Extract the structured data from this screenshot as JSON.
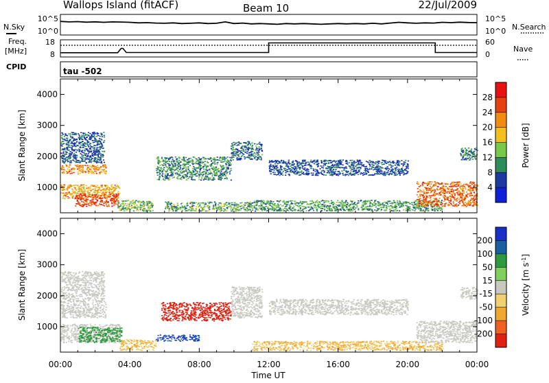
{
  "header": {
    "title": "Wallops Island (fitACF)",
    "beam": "Beam 10",
    "date": "22/Jul/2009"
  },
  "noise_panel": {
    "left_label": "N.Sky",
    "left_ticks": [
      "10^5",
      "10^0"
    ],
    "right_label": "N.Search",
    "right_ticks": [
      "10^5",
      "10^0"
    ]
  },
  "freq_panel": {
    "left_label_1": "Freq.",
    "left_label_2": "[MHz]",
    "left_ticks": [
      "18",
      "8"
    ],
    "right_label": "Nave",
    "right_ticks": [
      "60",
      "0"
    ],
    "cpid_label": "CPID"
  },
  "cpid_panel": {
    "text": "tau -502"
  },
  "x_axis": {
    "ticks": [
      "00:00",
      "04:00",
      "08:00",
      "12:00",
      "16:00",
      "20:00",
      "00:00"
    ],
    "label": "Time UT"
  },
  "colors": {
    "power": [
      "#1020d8",
      "#1c3aa0",
      "#2e8c5a",
      "#7ac84a",
      "#f4c020",
      "#f08c10",
      "#e84010",
      "#e81010"
    ],
    "velocity": [
      "#1830c8",
      "#1a60a0",
      "#2f9a40",
      "#80d060",
      "#c8c8c0",
      "#f0d070",
      "#f0a830",
      "#f06020",
      "#e02010"
    ]
  },
  "chart_data": [
    {
      "type": "line",
      "name": "noise",
      "x_unit": "hours UT",
      "xlim": [
        0,
        24
      ],
      "y_scale": "log",
      "ylim": [
        1,
        100000
      ],
      "series": [
        {
          "name": "N.Sky",
          "x": [
            0,
            0.5,
            1,
            1.5,
            2,
            2.5,
            3,
            3.5,
            4,
            4.5,
            5,
            5.5,
            6,
            6.5,
            7,
            7.5,
            8,
            8.5,
            9,
            9.5,
            10,
            10.5,
            11,
            11.5,
            12,
            12.5,
            13,
            13.5,
            14,
            14.5,
            15,
            15.5,
            16,
            16.5,
            17,
            17.5,
            18,
            18.5,
            19,
            19.5,
            20,
            20.5,
            21,
            21.5,
            22,
            22.5,
            23,
            23.5,
            24
          ],
          "y": [
            2000,
            1500,
            1800,
            1300,
            1600,
            1200,
            1500,
            1400,
            1200,
            900,
            1000,
            800,
            700,
            900,
            600,
            700,
            900,
            600,
            700,
            1500,
            600,
            800,
            500,
            600,
            500,
            400,
            600,
            500,
            600,
            500,
            400,
            500,
            600,
            500,
            600,
            500,
            700,
            500,
            800,
            1200,
            900,
            700,
            900,
            800,
            1200,
            1000,
            1300,
            1100,
            1000
          ]
        }
      ]
    },
    {
      "type": "line",
      "name": "frequency",
      "x_unit": "hours UT",
      "xlim": [
        0,
        24
      ],
      "ylim": [
        8,
        18
      ],
      "series": [
        {
          "name": "Freq.",
          "x": [
            0,
            3.3,
            3.5,
            3.6,
            3.8,
            12.0,
            12.0,
            21.6,
            21.6,
            24
          ],
          "y": [
            10.5,
            10.5,
            13.0,
            13.0,
            10.6,
            10.6,
            16.2,
            16.2,
            10.6,
            10.6
          ]
        }
      ]
    },
    {
      "type": "heatmap",
      "name": "power",
      "x_unit": "hours UT",
      "xlim": [
        0,
        24
      ],
      "ylabel": "Slant Range [km]",
      "ylim": [
        180,
        4500
      ],
      "yticks": [
        1000,
        2000,
        3000,
        4000
      ],
      "colorbar": {
        "label": "Power [dB]",
        "ticks": [
          4,
          8,
          12,
          16,
          20,
          24,
          28
        ],
        "range": [
          0,
          32
        ]
      },
      "regions": [
        {
          "t": [
            0.0,
            2.6
          ],
          "r": [
            1450,
            1750
          ],
          "v": 22
        },
        {
          "t": [
            0.0,
            3.4
          ],
          "r": [
            650,
            1100
          ],
          "v": 20
        },
        {
          "t": [
            0.8,
            3.3
          ],
          "r": [
            400,
            800
          ],
          "v": 27
        },
        {
          "t": [
            0.0,
            2.5
          ],
          "r": [
            1800,
            2800
          ],
          "v": 7
        },
        {
          "t": [
            3.2,
            5.3
          ],
          "r": [
            250,
            600
          ],
          "v": 13
        },
        {
          "t": [
            6.0,
            11.0
          ],
          "r": [
            250,
            550
          ],
          "v": 12
        },
        {
          "t": [
            5.5,
            9.8
          ],
          "r": [
            1250,
            2000
          ],
          "v": 10
        },
        {
          "t": [
            9.8,
            11.6
          ],
          "r": [
            1900,
            2500
          ],
          "v": 8
        },
        {
          "t": [
            11.0,
            22.0
          ],
          "r": [
            250,
            600
          ],
          "v": 11
        },
        {
          "t": [
            12.0,
            20.0
          ],
          "r": [
            1400,
            1900
          ],
          "v": 6
        },
        {
          "t": [
            20.5,
            24.0
          ],
          "r": [
            400,
            1200
          ],
          "v": 24
        },
        {
          "t": [
            23.0,
            24.0
          ],
          "r": [
            1900,
            2300
          ],
          "v": 9
        }
      ]
    },
    {
      "type": "heatmap",
      "name": "velocity",
      "x_unit": "hours UT",
      "xlim": [
        0,
        24
      ],
      "ylabel": "Slant Range [km]",
      "ylim": [
        180,
        4500
      ],
      "yticks": [
        1000,
        2000,
        3000,
        4000
      ],
      "colorbar": {
        "label": "Velocity [m s^-1]",
        "ticks": [
          200,
          100,
          50,
          15,
          -15,
          -50,
          -100,
          -200
        ]
      },
      "regions": [
        {
          "t": [
            0.0,
            2.6
          ],
          "r": [
            1300,
            1800
          ],
          "v": 0
        },
        {
          "t": [
            0.0,
            3.4
          ],
          "r": [
            500,
            1100
          ],
          "v": 0
        },
        {
          "t": [
            0.0,
            2.5
          ],
          "r": [
            1800,
            2800
          ],
          "v": 0
        },
        {
          "t": [
            1.0,
            3.5
          ],
          "r": [
            500,
            1000
          ],
          "v": 60
        },
        {
          "t": [
            3.4,
            5.5
          ],
          "r": [
            250,
            600
          ],
          "v": -30
        },
        {
          "t": [
            5.5,
            8.0
          ],
          "r": [
            550,
            750
          ],
          "v": 150
        },
        {
          "t": [
            5.8,
            9.8
          ],
          "r": [
            1200,
            1800
          ],
          "v": -210
        },
        {
          "t": [
            9.8,
            11.6
          ],
          "r": [
            1300,
            2300
          ],
          "v": 0
        },
        {
          "t": [
            11.0,
            22.0
          ],
          "r": [
            250,
            550
          ],
          "v": -30
        },
        {
          "t": [
            12.0,
            20.0
          ],
          "r": [
            1400,
            1900
          ],
          "v": 0
        },
        {
          "t": [
            20.5,
            24.0
          ],
          "r": [
            500,
            1200
          ],
          "v": 0
        },
        {
          "t": [
            23.0,
            24.0
          ],
          "r": [
            1900,
            2300
          ],
          "v": 0
        }
      ]
    }
  ]
}
